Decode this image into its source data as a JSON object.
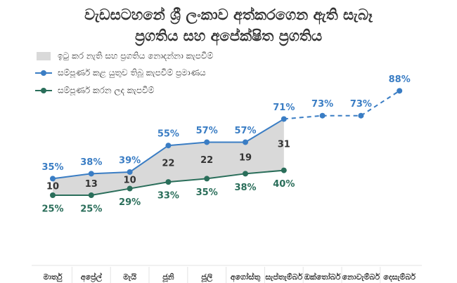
{
  "chart_data": {
    "type": "line",
    "title": "වැඩසටහනේ ශ්‍රී ලංකාව අත්කරගෙන ඇති සැබෑ ප්‍රගතිය සහ අපේක්ෂිත ප්‍රගතිය",
    "categories": [
      "මාර්තු",
      "අප්‍රේල්",
      "මැයි",
      "ජූනි",
      "ජූලි",
      "අගෝස්තු",
      "සැප්තැම්බර්",
      "ඔක්තෝබර්",
      "නොවැම්බර්",
      "දෙසැම්බර්"
    ],
    "ylim": [
      0,
      100
    ],
    "dashed_from": "සැප්තැම්බර්",
    "series": [
      {
        "name": "ඉටු කර නැති සහ ප්‍රගතිය නොදන්නා කැපවීම්",
        "color": "#d9d9d9",
        "role": "gap",
        "values": [
          10,
          13,
          10,
          22,
          22,
          19,
          31,
          null,
          null,
          null
        ]
      },
      {
        "name": "සම්පූර්ණ කළ යුතුව තිබූ කැපවීම් ප්‍රමාණය",
        "color": "#3a7dc4",
        "role": "upper",
        "values": [
          35,
          38,
          39,
          55,
          57,
          57,
          71,
          73,
          73,
          88
        ],
        "value_labels": [
          "35%",
          "38%",
          "39%",
          "55%",
          "57%",
          "57%",
          "71%",
          "73%",
          "73%",
          "88%"
        ]
      },
      {
        "name": "සම්පූර්ණ කරන ලද කැපවීම්",
        "color": "#2a6e5a",
        "role": "lower",
        "values": [
          25,
          25,
          29,
          33,
          35,
          38,
          40,
          null,
          null,
          null
        ],
        "value_labels": [
          "25%",
          "25%",
          "29%",
          "33%",
          "35%",
          "38%",
          "40%",
          null,
          null,
          null
        ]
      }
    ]
  }
}
